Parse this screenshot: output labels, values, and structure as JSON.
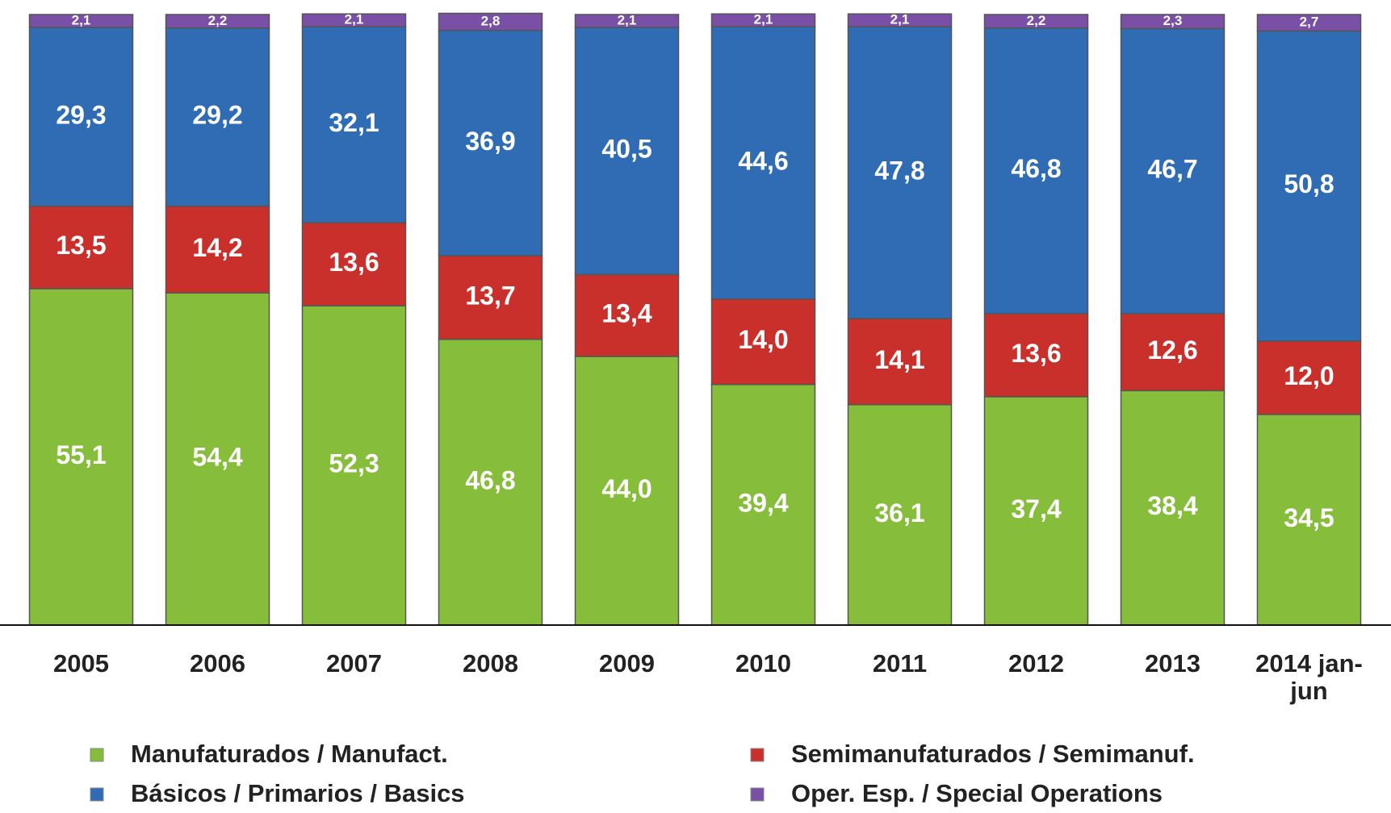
{
  "chart_data": {
    "type": "stacked_bar",
    "categories": [
      "2005",
      "2006",
      "2007",
      "2008",
      "2009",
      "2010",
      "2011",
      "2012",
      "2013",
      "2014 jan-jun"
    ],
    "ylim": [
      0,
      100
    ],
    "series": [
      {
        "name": "Manufaturados / Manufact.",
        "color": "#86bd3a",
        "values": [
          55.1,
          54.4,
          52.3,
          46.8,
          44.0,
          39.4,
          36.1,
          37.4,
          38.4,
          34.5
        ],
        "value_labels": [
          "55,1",
          "54,4",
          "52,3",
          "46,8",
          "44,0",
          "39,4",
          "36,1",
          "37,4",
          "38,4",
          "34,5"
        ]
      },
      {
        "name": "Semimanufaturados / Semimanuf.",
        "color": "#c9302c",
        "values": [
          13.5,
          14.2,
          13.6,
          13.7,
          13.4,
          14.0,
          14.1,
          13.6,
          12.6,
          12.0
        ],
        "value_labels": [
          "13,5",
          "14,2",
          "13,6",
          "13,7",
          "13,4",
          "14,0",
          "14,1",
          "13,6",
          "12,6",
          "12,0"
        ]
      },
      {
        "name": "Básicos / Primarios / Basics",
        "color": "#2f6cb4",
        "values": [
          29.3,
          29.2,
          32.1,
          36.9,
          40.5,
          44.6,
          47.8,
          46.8,
          46.7,
          50.8
        ],
        "value_labels": [
          "29,3",
          "29,2",
          "32,1",
          "36,9",
          "40,5",
          "44,6",
          "47,8",
          "46,8",
          "46,7",
          "50,8"
        ]
      },
      {
        "name": "Oper. Esp. / Special Operations",
        "color": "#7a4fa6",
        "values": [
          2.1,
          2.2,
          2.1,
          2.8,
          2.1,
          2.1,
          2.1,
          2.2,
          2.3,
          2.7
        ],
        "value_labels": [
          "2,1",
          "2,2",
          "2,1",
          "2,8",
          "2,1",
          "2,1",
          "2,1",
          "2,2",
          "2,3",
          "2,7"
        ]
      }
    ]
  }
}
